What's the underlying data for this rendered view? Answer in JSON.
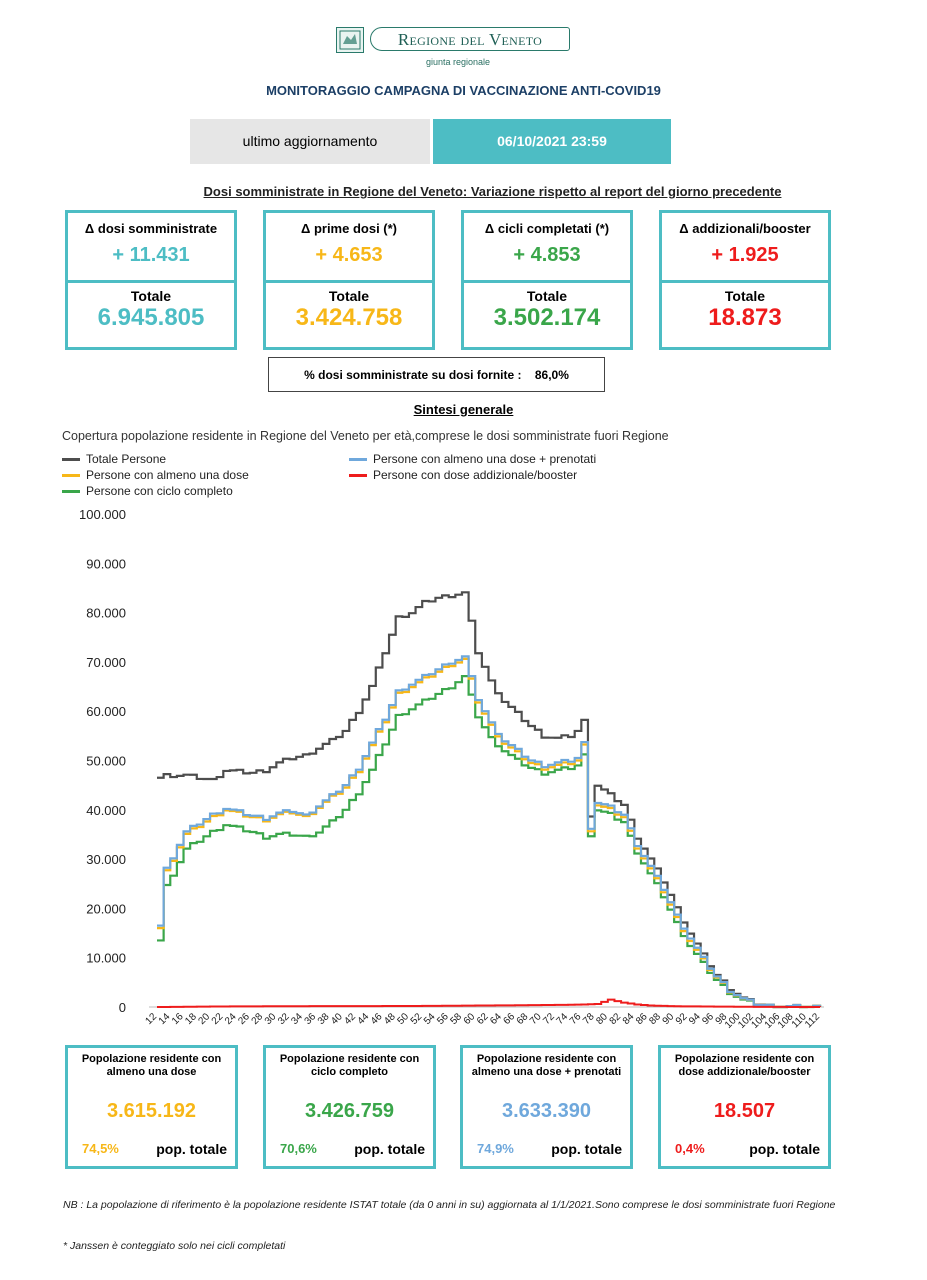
{
  "header": {
    "logo_text": "Regione del Veneto",
    "logo_subtext": "giunta regionale",
    "title": "MONITORAGGIO CAMPAGNA DI VACCINAZIONE ANTI-COVID19",
    "update_label": "ultimo aggiornamento",
    "update_value": "06/10/2021 23:59"
  },
  "daily": {
    "section_title": "Dosi somministrate in Regione del Veneto: Variazione rispetto al report del giorno precedente",
    "total_label": "Totale",
    "cards": [
      {
        "label": "Δ dosi somministrate",
        "delta": "+ 11.431",
        "total": "6.945.805",
        "color": "#4dbdc4"
      },
      {
        "label": "Δ prime dosi (*)",
        "delta": "+ 4.653",
        "total": "3.424.758",
        "color": "#f7b718"
      },
      {
        "label": "Δ cicli completati (*)",
        "delta": "+ 4.853",
        "total": "3.502.174",
        "color": "#3aa64a"
      },
      {
        "label": "Δ addizionali/booster",
        "delta": "+ 1.925",
        "total": "18.873",
        "color": "#ee1c1c"
      }
    ],
    "pct_label": "% dosi somministrate su dosi fornite :",
    "pct_value": "86,0%"
  },
  "summary": {
    "title": "Sintesi generale",
    "subtitle": "Copertura popolazione residente in Regione del Veneto per età,comprese le dosi somministrate fuori Regione"
  },
  "chart_data": {
    "type": "line",
    "xlabel": "",
    "ylabel": "",
    "ylim": [
      0,
      100000
    ],
    "yticks": [
      "0",
      "10.000",
      "20.000",
      "30.000",
      "40.000",
      "50.000",
      "60.000",
      "70.000",
      "80.000",
      "90.000",
      "100.000"
    ],
    "xticks": [
      "12",
      "14",
      "16",
      "18",
      "20",
      "22",
      "24",
      "26",
      "28",
      "30",
      "32",
      "34",
      "36",
      "38",
      "40",
      "42",
      "44",
      "46",
      "48",
      "50",
      "52",
      "54",
      "56",
      "58",
      "60",
      "62",
      "64",
      "66",
      "68",
      "70",
      "72",
      "74",
      "76",
      "78",
      "80",
      "82",
      "84",
      "86",
      "88",
      "90",
      "92",
      "94",
      "96",
      "98",
      "100",
      "102",
      "104",
      "106",
      "108",
      "110",
      "112"
    ],
    "x_range": [
      12,
      112
    ],
    "legend_position": "top-left",
    "series": [
      {
        "name": "Totale Persone",
        "color": "#4d4d4d",
        "points": [
          [
            12,
            46500
          ],
          [
            13,
            47000
          ],
          [
            16,
            47000
          ],
          [
            20,
            46000
          ],
          [
            22,
            48000
          ],
          [
            26,
            47500
          ],
          [
            28,
            48000
          ],
          [
            30,
            49500
          ],
          [
            32,
            50500
          ],
          [
            34,
            51000
          ],
          [
            36,
            52500
          ],
          [
            38,
            54000
          ],
          [
            40,
            56000
          ],
          [
            42,
            60000
          ],
          [
            44,
            65000
          ],
          [
            46,
            72000
          ],
          [
            48,
            79000
          ],
          [
            50,
            80000
          ],
          [
            52,
            82000
          ],
          [
            54,
            83000
          ],
          [
            56,
            83500
          ],
          [
            58,
            84000
          ],
          [
            60,
            72000
          ],
          [
            62,
            66000
          ],
          [
            64,
            62000
          ],
          [
            66,
            59500
          ],
          [
            68,
            57000
          ],
          [
            70,
            55000
          ],
          [
            72,
            54500
          ],
          [
            74,
            55000
          ],
          [
            75,
            56000
          ],
          [
            76,
            58000
          ],
          [
            77,
            39000
          ],
          [
            78,
            45000
          ],
          [
            80,
            43000
          ],
          [
            82,
            41000
          ],
          [
            84,
            34500
          ],
          [
            86,
            30000
          ],
          [
            88,
            25500
          ],
          [
            90,
            20000
          ],
          [
            92,
            15000
          ],
          [
            94,
            10500
          ],
          [
            96,
            6500
          ],
          [
            98,
            3800
          ],
          [
            100,
            1800
          ],
          [
            102,
            700
          ],
          [
            104,
            250
          ],
          [
            106,
            100
          ],
          [
            108,
            40
          ],
          [
            110,
            10
          ],
          [
            112,
            0
          ]
        ]
      },
      {
        "name": "Persone con almeno una dose",
        "color": "#f7b718",
        "points": [
          [
            12,
            16000
          ],
          [
            13,
            27500
          ],
          [
            16,
            35000
          ],
          [
            20,
            38500
          ],
          [
            22,
            40000
          ],
          [
            26,
            38500
          ],
          [
            28,
            38000
          ],
          [
            30,
            39000
          ],
          [
            32,
            39500
          ],
          [
            34,
            38500
          ],
          [
            36,
            40500
          ],
          [
            38,
            42500
          ],
          [
            40,
            44500
          ],
          [
            42,
            48000
          ],
          [
            44,
            53000
          ],
          [
            46,
            58000
          ],
          [
            48,
            63500
          ],
          [
            50,
            65000
          ],
          [
            52,
            66500
          ],
          [
            54,
            68000
          ],
          [
            56,
            69500
          ],
          [
            58,
            70500
          ],
          [
            60,
            62000
          ],
          [
            62,
            57000
          ],
          [
            64,
            53500
          ],
          [
            66,
            51500
          ],
          [
            68,
            49500
          ],
          [
            70,
            48500
          ],
          [
            72,
            49000
          ],
          [
            74,
            49500
          ],
          [
            75,
            50000
          ],
          [
            76,
            53000
          ],
          [
            77,
            36000
          ],
          [
            78,
            41000
          ],
          [
            80,
            40000
          ],
          [
            82,
            38500
          ],
          [
            84,
            32500
          ],
          [
            86,
            28000
          ],
          [
            88,
            23500
          ],
          [
            90,
            18000
          ],
          [
            92,
            13500
          ],
          [
            94,
            9500
          ],
          [
            96,
            6000
          ],
          [
            98,
            3300
          ],
          [
            100,
            1600
          ],
          [
            102,
            600
          ],
          [
            104,
            200
          ],
          [
            106,
            80
          ],
          [
            108,
            30
          ],
          [
            110,
            8
          ],
          [
            112,
            0
          ]
        ]
      },
      {
        "name": "Persone con almeno una dose + prenotati",
        "color": "#6fa8dc",
        "points": [
          [
            12,
            16500
          ],
          [
            13,
            28000
          ],
          [
            16,
            35500
          ],
          [
            20,
            39000
          ],
          [
            22,
            40300
          ],
          [
            26,
            38800
          ],
          [
            28,
            38300
          ],
          [
            30,
            39300
          ],
          [
            32,
            39800
          ],
          [
            34,
            38800
          ],
          [
            36,
            40800
          ],
          [
            38,
            42800
          ],
          [
            40,
            45000
          ],
          [
            42,
            48500
          ],
          [
            44,
            53500
          ],
          [
            46,
            58500
          ],
          [
            48,
            64000
          ],
          [
            50,
            65500
          ],
          [
            52,
            67000
          ],
          [
            54,
            68500
          ],
          [
            56,
            70000
          ],
          [
            58,
            71000
          ],
          [
            60,
            62500
          ],
          [
            62,
            57500
          ],
          [
            64,
            54000
          ],
          [
            66,
            52000
          ],
          [
            68,
            50000
          ],
          [
            70,
            49000
          ],
          [
            72,
            49500
          ],
          [
            74,
            50000
          ],
          [
            75,
            50500
          ],
          [
            76,
            53500
          ],
          [
            77,
            36500
          ],
          [
            78,
            41500
          ],
          [
            80,
            40500
          ],
          [
            82,
            39000
          ],
          [
            84,
            33000
          ],
          [
            86,
            28500
          ],
          [
            88,
            24000
          ],
          [
            90,
            18500
          ],
          [
            92,
            14000
          ],
          [
            94,
            9800
          ],
          [
            96,
            6200
          ],
          [
            98,
            3400
          ],
          [
            100,
            1650
          ],
          [
            102,
            620
          ],
          [
            104,
            210
          ],
          [
            106,
            85
          ],
          [
            108,
            32
          ],
          [
            110,
            9
          ],
          [
            112,
            0
          ]
        ]
      },
      {
        "name": "Persone con ciclo completo",
        "color": "#3aa64a",
        "points": [
          [
            12,
            13500
          ],
          [
            13,
            24500
          ],
          [
            16,
            32000
          ],
          [
            20,
            35500
          ],
          [
            22,
            37000
          ],
          [
            26,
            35500
          ],
          [
            28,
            34500
          ],
          [
            30,
            35000
          ],
          [
            32,
            35000
          ],
          [
            34,
            34500
          ],
          [
            36,
            35500
          ],
          [
            38,
            37500
          ],
          [
            40,
            40000
          ],
          [
            42,
            43500
          ],
          [
            44,
            48000
          ],
          [
            46,
            53500
          ],
          [
            48,
            59000
          ],
          [
            50,
            60500
          ],
          [
            52,
            62000
          ],
          [
            54,
            63500
          ],
          [
            56,
            65000
          ],
          [
            58,
            67000
          ],
          [
            60,
            59000
          ],
          [
            62,
            54500
          ],
          [
            64,
            52000
          ],
          [
            66,
            50000
          ],
          [
            68,
            48500
          ],
          [
            70,
            47500
          ],
          [
            72,
            48000
          ],
          [
            74,
            48500
          ],
          [
            75,
            49000
          ],
          [
            76,
            51000
          ],
          [
            77,
            35000
          ],
          [
            78,
            40000
          ],
          [
            80,
            39000
          ],
          [
            82,
            37500
          ],
          [
            84,
            31500
          ],
          [
            86,
            27000
          ],
          [
            88,
            22500
          ],
          [
            90,
            17000
          ],
          [
            92,
            12500
          ],
          [
            94,
            8800
          ],
          [
            96,
            5500
          ],
          [
            98,
            3000
          ],
          [
            100,
            1400
          ],
          [
            102,
            500
          ],
          [
            104,
            180
          ],
          [
            106,
            70
          ],
          [
            108,
            25
          ],
          [
            110,
            6
          ],
          [
            112,
            0
          ]
        ]
      },
      {
        "name": "Persone con dose addizionale/booster",
        "color": "#ee1c1c",
        "points": [
          [
            12,
            0
          ],
          [
            20,
            100
          ],
          [
            30,
            150
          ],
          [
            40,
            180
          ],
          [
            50,
            200
          ],
          [
            56,
            250
          ],
          [
            60,
            300
          ],
          [
            66,
            350
          ],
          [
            70,
            400
          ],
          [
            74,
            450
          ],
          [
            76,
            500
          ],
          [
            78,
            600
          ],
          [
            80,
            1500
          ],
          [
            82,
            900
          ],
          [
            84,
            500
          ],
          [
            86,
            300
          ],
          [
            90,
            150
          ],
          [
            96,
            80
          ],
          [
            104,
            20
          ],
          [
            112,
            0
          ]
        ]
      }
    ]
  },
  "bottom_cards": [
    {
      "label": "Popolazione residente con almeno una dose",
      "value": "3.615.192",
      "pct": "74,5%",
      "pop_label": "pop. totale",
      "color": "#f7b718"
    },
    {
      "label": "Popolazione residente con ciclo completo",
      "value": "3.426.759",
      "pct": "70,6%",
      "pop_label": "pop. totale",
      "color": "#3aa64a"
    },
    {
      "label": "Popolazione residente con almeno una dose + prenotati",
      "value": "3.633.390",
      "pct": "74,9%",
      "pop_label": "pop. totale",
      "color": "#6fa8dc"
    },
    {
      "label": "Popolazione residente con dose addizionale/booster",
      "value": "18.507",
      "pct": "0,4%",
      "pop_label": "pop. totale",
      "color": "#ee1c1c"
    }
  ],
  "notes": {
    "nb": "NB : La popolazione di riferimento è la popolazione residente ISTAT totale (da 0 anni in su) aggiornata  al 1/1/2021.Sono comprese le dosi somministrate fuori Regione",
    "janssen": "* Janssen è conteggiato solo nei cicli completati"
  }
}
